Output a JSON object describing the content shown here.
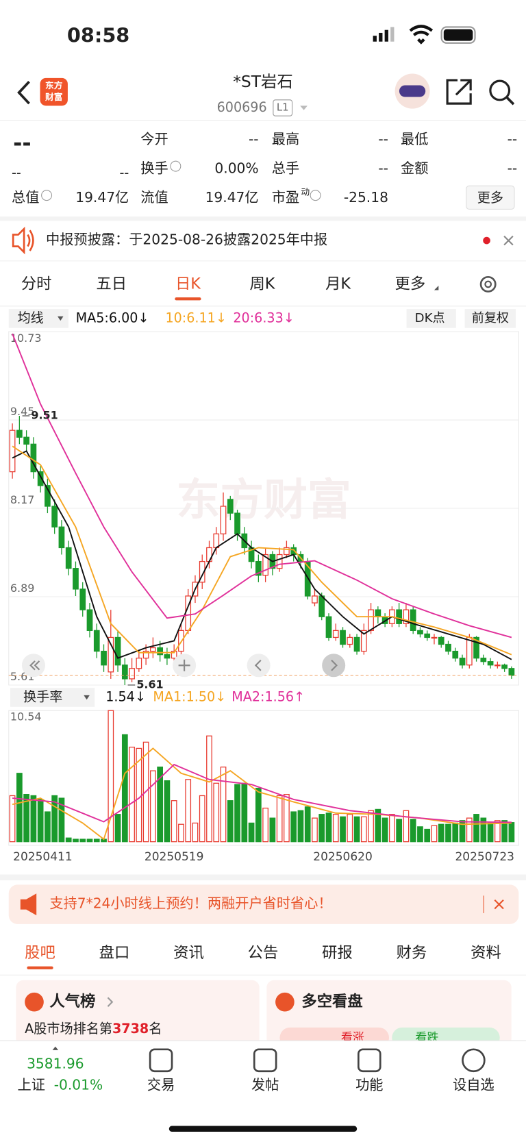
{
  "status_bar": {
    "time": "08:58"
  },
  "header": {
    "logo": [
      "东方",
      "财富"
    ],
    "title": "*ST岩石",
    "code": "600696",
    "level": "L1"
  },
  "quote": {
    "price": "--",
    "change": "--",
    "change_pct": "--",
    "fields": [
      {
        "label": "今开",
        "value": "--"
      },
      {
        "label": "最高",
        "value": "--"
      },
      {
        "label": "最低",
        "value": "--"
      },
      {
        "label": "换手",
        "value": "0.00%"
      },
      {
        "label": "总手",
        "value": "--"
      },
      {
        "label": "金额",
        "value": "--"
      },
      {
        "label": "总值",
        "value": "19.47亿"
      },
      {
        "label": "流值",
        "value": "19.47亿"
      },
      {
        "label": "市盈",
        "sup": "动",
        "value": "-25.18"
      }
    ],
    "more": "更多"
  },
  "notice": {
    "text": "中报预披露：于2025-08-26披露2025年中报"
  },
  "period_tabs": {
    "items": [
      "分时",
      "五日",
      "日K",
      "周K",
      "月K",
      "更多"
    ],
    "active": 2
  },
  "chart": {
    "type": "candlestick",
    "indicator": "均线",
    "legend": [
      {
        "text": "MA5:6.00↓",
        "color": "#111111"
      },
      {
        "text": "10:6.11↓",
        "color": "#f5a623"
      },
      {
        "text": "20:6.33↓",
        "color": "#e0309a"
      }
    ],
    "buttons": [
      "DK点",
      "前复权"
    ],
    "watermark": "东方财富",
    "ylim": [
      5.61,
      10.73
    ],
    "yticks": [
      10.73,
      9.45,
      8.17,
      6.89,
      5.61
    ],
    "high": {
      "index": 1,
      "value": 9.51
    },
    "low": {
      "index": 16,
      "value": 5.61
    },
    "dates": [
      "20250411",
      null,
      null,
      null,
      null,
      null,
      null,
      null,
      null,
      null,
      null,
      null,
      null,
      null,
      null,
      null,
      null,
      null,
      null,
      null,
      null,
      null,
      null,
      "20250519",
      null,
      null,
      null,
      null,
      null,
      null,
      null,
      null,
      null,
      null,
      null,
      null,
      null,
      null,
      null,
      null,
      null,
      null,
      null,
      null,
      null,
      null,
      null,
      "20250620",
      null,
      null,
      null,
      null,
      null,
      null,
      null,
      null,
      null,
      null,
      null,
      null,
      null,
      null,
      null,
      null,
      null,
      null,
      null,
      null,
      null,
      null,
      null,
      "20250723"
    ],
    "candles": [
      [
        8.7,
        9.4,
        8.6,
        9.3
      ],
      [
        9.3,
        9.51,
        9.1,
        9.2
      ],
      [
        9.2,
        9.3,
        9.0,
        9.1
      ],
      [
        9.1,
        9.2,
        8.6,
        8.7
      ],
      [
        8.7,
        8.8,
        8.4,
        8.5
      ],
      [
        8.5,
        8.6,
        8.1,
        8.2
      ],
      [
        8.2,
        8.3,
        7.8,
        7.9
      ],
      [
        7.9,
        8.0,
        7.5,
        7.6
      ],
      [
        7.6,
        7.7,
        7.2,
        7.3
      ],
      [
        7.3,
        7.4,
        6.9,
        7.0
      ],
      [
        7.0,
        7.1,
        6.6,
        6.7
      ],
      [
        6.7,
        6.8,
        6.3,
        6.4
      ],
      [
        6.4,
        6.5,
        6.0,
        6.1
      ],
      [
        6.1,
        6.2,
        5.8,
        5.9
      ],
      [
        5.8,
        6.7,
        5.7,
        6.3
      ],
      [
        6.3,
        6.4,
        5.8,
        5.9
      ],
      [
        5.9,
        6.0,
        5.61,
        5.7
      ],
      [
        5.7,
        6.0,
        5.65,
        5.85
      ],
      [
        5.85,
        6.1,
        5.8,
        6.0
      ],
      [
        6.0,
        6.2,
        5.9,
        6.1
      ],
      [
        6.1,
        6.3,
        6.0,
        6.15
      ],
      [
        6.15,
        6.25,
        5.95,
        6.05
      ],
      [
        6.05,
        6.15,
        5.9,
        6.0
      ],
      [
        6.0,
        6.2,
        5.95,
        6.1
      ],
      [
        6.1,
        6.5,
        6.05,
        6.4
      ],
      [
        6.4,
        7.0,
        6.35,
        6.9
      ],
      [
        6.9,
        7.2,
        6.8,
        7.1
      ],
      [
        7.1,
        7.5,
        7.0,
        7.4
      ],
      [
        7.4,
        7.7,
        7.3,
        7.6
      ],
      [
        7.6,
        7.9,
        7.5,
        7.8
      ],
      [
        7.8,
        8.4,
        7.7,
        8.2
      ],
      [
        8.3,
        8.35,
        8.0,
        8.1
      ],
      [
        8.1,
        8.15,
        7.7,
        7.8
      ],
      [
        7.8,
        7.9,
        7.5,
        7.6
      ],
      [
        7.6,
        7.7,
        7.3,
        7.4
      ],
      [
        7.4,
        7.5,
        7.1,
        7.2
      ],
      [
        7.2,
        7.6,
        7.1,
        7.5
      ],
      [
        7.5,
        7.55,
        7.2,
        7.3
      ],
      [
        7.3,
        7.6,
        7.25,
        7.5
      ],
      [
        7.5,
        7.7,
        7.45,
        7.6
      ],
      [
        7.6,
        7.65,
        7.4,
        7.5
      ],
      [
        7.5,
        7.55,
        7.3,
        7.4
      ],
      [
        7.4,
        7.45,
        6.85,
        6.9
      ],
      [
        6.8,
        7.0,
        6.75,
        6.9
      ],
      [
        6.9,
        6.95,
        6.55,
        6.6
      ],
      [
        6.6,
        6.65,
        6.25,
        6.3
      ],
      [
        6.3,
        6.5,
        6.25,
        6.4
      ],
      [
        6.4,
        6.45,
        6.15,
        6.2
      ],
      [
        6.2,
        6.35,
        6.15,
        6.3
      ],
      [
        6.3,
        6.35,
        6.05,
        6.1
      ],
      [
        6.1,
        6.5,
        6.05,
        6.4
      ],
      [
        6.4,
        6.8,
        6.35,
        6.7
      ],
      [
        6.7,
        6.75,
        6.5,
        6.6
      ],
      [
        6.6,
        6.65,
        6.45,
        6.5
      ],
      [
        6.5,
        6.75,
        6.45,
        6.7
      ],
      [
        6.7,
        6.8,
        6.45,
        6.5
      ],
      [
        6.5,
        6.8,
        6.45,
        6.7
      ],
      [
        6.7,
        6.75,
        6.35,
        6.4
      ],
      [
        6.4,
        6.45,
        6.3,
        6.35
      ],
      [
        6.35,
        6.4,
        6.25,
        6.3
      ],
      [
        6.3,
        6.35,
        6.2,
        6.3
      ],
      [
        6.3,
        6.32,
        6.15,
        6.2
      ],
      [
        6.2,
        6.25,
        6.05,
        6.1
      ],
      [
        6.1,
        6.15,
        5.95,
        6.0
      ],
      [
        6.0,
        6.05,
        5.85,
        5.9
      ],
      [
        5.9,
        6.35,
        5.85,
        6.3
      ],
      [
        6.3,
        6.32,
        5.95,
        6.0
      ],
      [
        6.0,
        6.05,
        5.9,
        5.95
      ],
      [
        5.95,
        6.0,
        5.85,
        5.9
      ],
      [
        5.9,
        5.95,
        5.85,
        5.9
      ],
      [
        5.9,
        5.92,
        5.8,
        5.85
      ],
      [
        5.85,
        5.88,
        5.7,
        5.75
      ]
    ],
    "ma_lines": [
      {
        "color": "#111111",
        "x": [
          0,
          2,
          8,
          12,
          15,
          19,
          23,
          26,
          29,
          32,
          34,
          37,
          40,
          43,
          47,
          50,
          54,
          57,
          62,
          67,
          71
        ],
        "values": [
          8.9,
          9.0,
          7.9,
          6.6,
          6.0,
          6.15,
          6.25,
          7.0,
          7.6,
          7.8,
          7.6,
          7.4,
          7.5,
          7.0,
          6.6,
          6.35,
          6.6,
          6.5,
          6.35,
          6.2,
          5.98
        ]
      },
      {
        "color": "#f5a623",
        "x": [
          0,
          4,
          9,
          14,
          18,
          23,
          27,
          31,
          35,
          40,
          44,
          49,
          54,
          60,
          65,
          71
        ],
        "values": [
          9.07,
          8.8,
          7.9,
          6.5,
          6.08,
          6.08,
          6.7,
          7.47,
          7.6,
          7.57,
          7.1,
          6.6,
          6.6,
          6.45,
          6.3,
          6.05
        ]
      },
      {
        "color": "#e0309a",
        "x": [
          0,
          4,
          9,
          13,
          17,
          22,
          26,
          30,
          34,
          38,
          43,
          49,
          54,
          60,
          65,
          71
        ],
        "values": [
          10.7,
          9.68,
          8.68,
          7.9,
          7.25,
          6.58,
          6.64,
          6.91,
          7.19,
          7.36,
          7.41,
          7.13,
          6.86,
          6.64,
          6.47,
          6.3
        ]
      }
    ],
    "volume": {
      "indicator": "换手率",
      "legend": [
        {
          "text": "1.54↓",
          "color": "#111111"
        },
        {
          "text": "MA1:1.50↓",
          "color": "#f5a623"
        },
        {
          "text": "MA2:1.56↑",
          "color": "#e0309a"
        }
      ],
      "ylim": [
        0,
        10.54
      ],
      "yticks": [
        10.54
      ],
      "values": [
        3.7,
        5.5,
        3.8,
        3.7,
        3.4,
        2.4,
        3.7,
        3.5,
        0.3,
        0.2,
        0.2,
        0.2,
        0.2,
        0.2,
        10.54,
        2.2,
        8.6,
        7.6,
        7.5,
        8.0,
        5.7,
        6.0,
        4.9,
        3.3,
        1.4,
        5.0,
        1.5,
        3.7,
        8.5,
        4.7,
        6.0,
        3.3,
        4.6,
        4.7,
        1.5,
        4.3,
        2.7,
        1.9,
        3.7,
        3.8,
        2.4,
        2.5,
        2.8,
        1.9,
        2.2,
        2.3,
        2.2,
        2.0,
        2.2,
        2.0,
        2.0,
        2.5,
        2.6,
        1.9,
        2.2,
        1.8,
        2.5,
        1.8,
        1.2,
        1.0,
        1.3,
        1.4,
        1.4,
        1.5,
        1.7,
        1.9,
        2.2,
        1.9,
        1.5,
        1.7,
        1.7,
        1.54
      ],
      "ma_lines": [
        {
          "color": "#f5a623",
          "x": [
            0,
            4,
            10,
            13,
            16,
            20,
            24,
            28,
            31,
            35,
            40,
            46,
            52,
            58,
            64,
            71
          ],
          "values": [
            3.0,
            3.5,
            1.5,
            0.2,
            5.5,
            7.5,
            5.5,
            4.8,
            5.7,
            4.0,
            3.2,
            2.3,
            2.2,
            1.9,
            1.4,
            1.5
          ]
        },
        {
          "color": "#e0309a",
          "x": [
            0,
            6,
            13,
            18,
            23,
            28,
            34,
            40,
            48,
            56,
            64,
            71
          ],
          "values": [
            3.5,
            3.2,
            1.6,
            3.5,
            6.2,
            5.0,
            4.6,
            3.4,
            2.5,
            2.0,
            1.6,
            1.56
          ]
        }
      ]
    }
  },
  "ad": {
    "text": "支持7*24小时线上预约！两融开户省时省心！"
  },
  "section_tabs": {
    "items": [
      "股吧",
      "盘口",
      "资讯",
      "公告",
      "研报",
      "财务",
      "资料"
    ],
    "active": 0
  },
  "cards": {
    "popularity": {
      "title": "人气榜",
      "rank_prefix": "A股市场排名第",
      "rank": "3738",
      "rank_suffix": "名"
    },
    "sentiment": {
      "title": "多空看盘",
      "up": "看涨",
      "down": "看跌"
    }
  },
  "bottom_nav": {
    "index_value": "3581.96",
    "index_name": "上证",
    "index_change": "-0.01%",
    "items": [
      "交易",
      "发帖",
      "功能",
      "设自选"
    ]
  }
}
